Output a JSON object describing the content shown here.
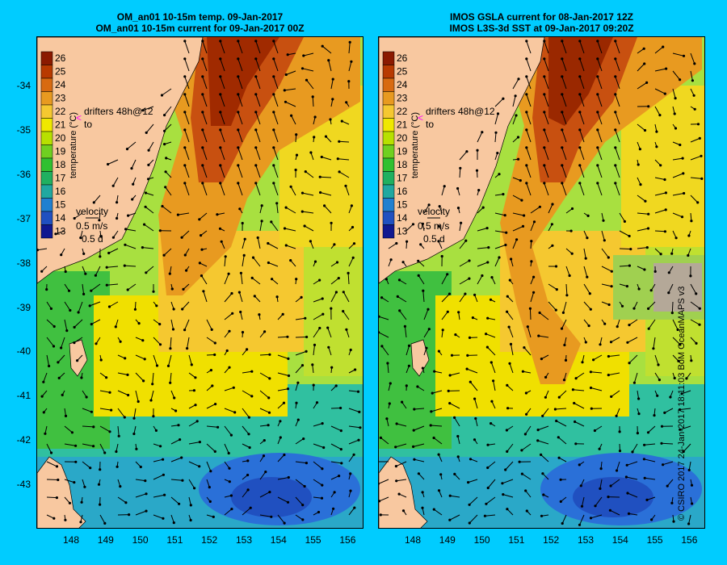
{
  "titles": {
    "left": [
      "OM_an01 10-15m temp. 09-Jan-2017",
      "OM_an01 10-15m current for 09-Jan-2017 00Z"
    ],
    "right": [
      "IMOS GSLA current for 08-Jan-2017 12Z",
      "IMOS L3S-3d SST at 09-Jan-2017 09:20Z"
    ]
  },
  "legend": {
    "values": [
      "26",
      "25",
      "24",
      "23",
      "22",
      "21",
      "20",
      "19",
      "18",
      "17",
      "16",
      "15",
      "14",
      "13"
    ],
    "colors": [
      "#8b1a00",
      "#b83a00",
      "#d86a10",
      "#e89a20",
      "#f5c830",
      "#f0e800",
      "#b8e000",
      "#70d020",
      "#30c030",
      "#20b060",
      "#20a8a0",
      "#2080d0",
      "#2050c0",
      "#101890"
    ],
    "title": "temperature (°C)"
  },
  "annotations": {
    "drifters": "drifters 48h@12",
    "to": "to",
    "velocity": "velocity",
    "speed": "0.5 m/s",
    "duration": "0.5 d"
  },
  "axes": {
    "y_ticks": [
      "-34",
      "-35",
      "-36",
      "-37",
      "-38",
      "-39",
      "-40",
      "-41",
      "-42",
      "-43"
    ],
    "x_ticks": [
      "148",
      "149",
      "150",
      "151",
      "152",
      "153",
      "154",
      "155",
      "156"
    ]
  },
  "credit": "© CSIRO 2017   24-Jan-2017 18:11:03 BoM OceanMAPS v3",
  "colors": {
    "land": "#f8c8a0",
    "background": "#00ccff",
    "drifter_marker": "#ff00ff"
  }
}
